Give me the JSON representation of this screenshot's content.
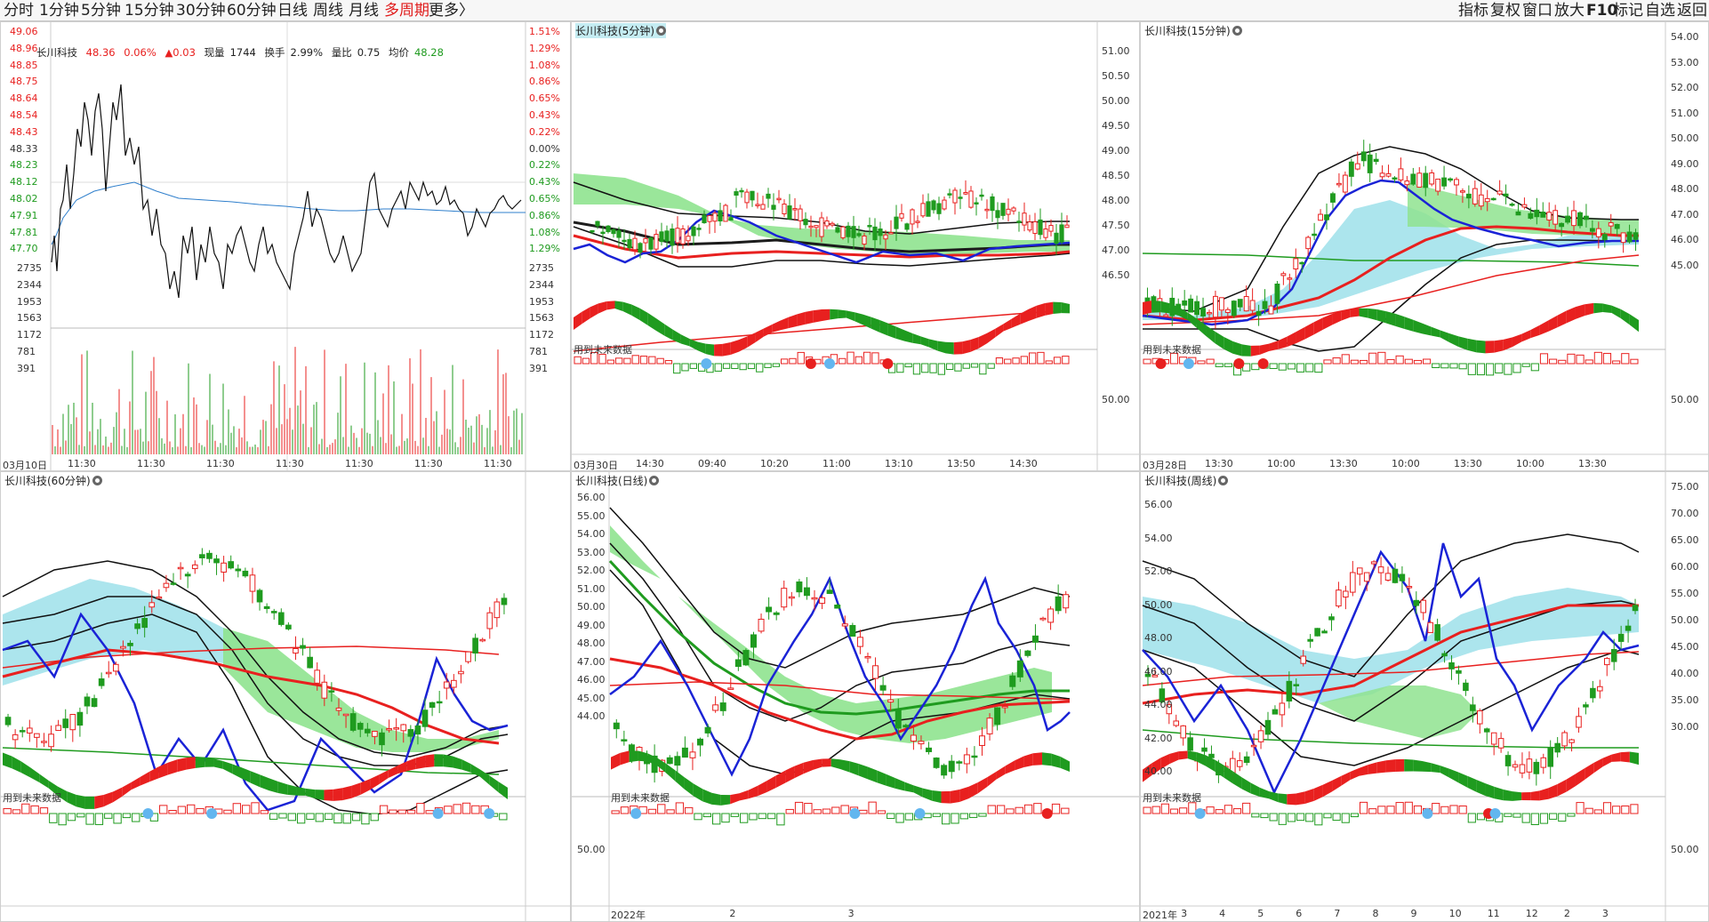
{
  "periods": [
    "分时",
    "1分钟",
    "5分钟",
    "15分钟",
    "30分钟",
    "60分钟",
    "日线",
    "周线",
    "月线",
    "多周期",
    "更多"
  ],
  "active_period": "多周期",
  "more_arrow": "〉",
  "right_tools": [
    "指标",
    "复权",
    "窗口",
    "放大",
    "F10",
    "标记",
    "自选",
    "返回"
  ],
  "colors": {
    "up": "#e8201f",
    "down": "#1f9b1f",
    "accent": "#e01b1b",
    "blue": "#1a23d6",
    "cloud_green": "#8fe38f",
    "cloud_cyan": "#a8e4ec"
  },
  "intraday": {
    "title": "长川科技",
    "last": "48.36",
    "change_pct": "0.06%",
    "change": "▲0.03",
    "volume_label": "现量",
    "volume": "1744",
    "turnover_label": "换手",
    "turnover": "2.99%",
    "ratio_label": "量比",
    "ratio": "0.75",
    "avg_label": "均价",
    "avg": "48.28",
    "price_ticks": [
      "49.06",
      "48.96",
      "48.85",
      "48.75",
      "48.64",
      "48.54",
      "48.43",
      "48.33",
      "48.23",
      "48.12",
      "48.02",
      "47.91",
      "47.81",
      "47.70"
    ],
    "pct_ticks": [
      "1.51%",
      "1.29%",
      "1.08%",
      "0.86%",
      "0.65%",
      "0.43%",
      "0.22%",
      "0.00%",
      "0.22%",
      "0.43%",
      "0.65%",
      "0.86%",
      "1.08%",
      "1.29%"
    ],
    "vol_ticks": [
      "2735",
      "2344",
      "1953",
      "1563",
      "1172",
      "781",
      "391"
    ],
    "date_labels": [
      "03月10日",
      "11:30",
      "11:30",
      "11:30",
      "11:30",
      "11:30",
      "11:30",
      "11:30"
    ]
  },
  "panels": [
    {
      "title": "长川科技(5分钟)",
      "note": "用到未来数据",
      "ticks": [
        "51.00",
        "50.50",
        "50.00",
        "49.50",
        "49.00",
        "48.50",
        "48.00",
        "47.50",
        "47.00",
        "46.50"
      ],
      "sub_tick": "50.00",
      "dates": [
        "03月30日",
        "14:30",
        "09:40",
        "10:20",
        "11:00",
        "13:10",
        "13:50",
        "14:30"
      ]
    },
    {
      "title": "长川科技(15分钟)",
      "note": "用到未来数据",
      "ticks": [
        "54.00",
        "53.00",
        "52.00",
        "51.00",
        "50.00",
        "49.00",
        "48.00",
        "47.00",
        "46.00",
        "45.00"
      ],
      "sub_tick": "50.00",
      "dates": [
        "03月28日",
        "13:30",
        "10:00",
        "13:30",
        "10:00",
        "13:30",
        "10:00",
        "13:30"
      ]
    },
    {
      "title": "长川科技(60分钟)",
      "note": "用到未来数据",
      "ticks": [],
      "sub_tick": "",
      "dates": []
    },
    {
      "title": "长川科技(日线)",
      "note": "用到未来数据",
      "ticks": [
        "56.00",
        "55.00",
        "54.00",
        "53.00",
        "52.00",
        "51.00",
        "50.00",
        "49.00",
        "48.00",
        "47.00",
        "46.00",
        "45.00",
        "44.00"
      ],
      "sub_tick": "50.00",
      "dates": [
        "2022年",
        "2",
        "3"
      ]
    },
    {
      "title": "长川科技(周线)",
      "note": "用到未来数据",
      "ticks": [
        "56.00",
        "54.00",
        "52.00",
        "50.00",
        "48.00",
        "46.00",
        "44.00",
        "42.00",
        "40.00"
      ],
      "right_ticks": [
        "75.00",
        "70.00",
        "65.00",
        "60.00",
        "55.00",
        "50.00",
        "45.00",
        "40.00",
        "35.00",
        "30.00"
      ],
      "sub_tick": "50.00",
      "dates": [
        "2021年",
        "3",
        "4",
        "5",
        "6",
        "7",
        "8",
        "9",
        "10",
        "11",
        "12",
        "2",
        "3"
      ]
    }
  ]
}
